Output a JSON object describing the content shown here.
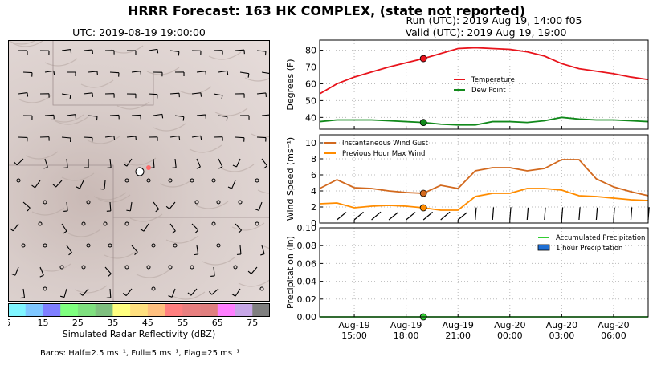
{
  "title": "HRRR Forecast: 163 HK COMPLEX, (state not reported)",
  "run_label": "Run (UTC): 2019 Aug 19, 14:00 f05",
  "valid_label": "Valid (UTC): 2019 Aug 19, 19:00",
  "map": {
    "time_label": "UTC: 2019-08-19 19:00:00",
    "colorbar_title": "Simulated Radar Reflectivity (dBZ)",
    "colorbar_ticks": [
      "5",
      "15",
      "25",
      "35",
      "45",
      "55",
      "65",
      "75"
    ],
    "colorbar_colors": [
      "#7ff5ff",
      "#7fc7ff",
      "#7f7fff",
      "#7fff7f",
      "#7fe07f",
      "#7fc07f",
      "#ffff7f",
      "#ffe07f",
      "#ffc07f",
      "#ff7f7f",
      "#e87f7f",
      "#e07f7f",
      "#ff7fff",
      "#c7a7e7",
      "#7f7f7f"
    ],
    "barb_note": "Barbs: Half=2.5 ms⁻¹, Full=5 ms⁻¹, Flag=25 ms⁻¹"
  },
  "chart_data": [
    {
      "type": "line",
      "ylabel": "Degrees (F)",
      "ylim": [
        33,
        86
      ],
      "yticks": [
        "40",
        "50",
        "60",
        "70",
        "80"
      ],
      "x": [
        "13:00",
        "14:00",
        "15:00",
        "16:00",
        "17:00",
        "18:00",
        "19:00",
        "20:00",
        "21:00",
        "22:00",
        "23:00",
        "00:00",
        "01:00",
        "02:00",
        "03:00",
        "04:00",
        "05:00",
        "06:00",
        "07:00",
        "08:00"
      ],
      "series": [
        {
          "name": "Temperature",
          "color": "#e8141c",
          "values": [
            54,
            60,
            64,
            67,
            70,
            72.5,
            75,
            78,
            81,
            81.5,
            81,
            80.5,
            79,
            76.5,
            72,
            69,
            67.5,
            66,
            64,
            62.5
          ]
        },
        {
          "name": "Dew Point",
          "color": "#11891b",
          "values": [
            37.5,
            38.5,
            38.5,
            38.5,
            38,
            37.5,
            37,
            36,
            35.5,
            35.5,
            37.5,
            37.5,
            37,
            38,
            40,
            39,
            38.5,
            38.5,
            38,
            37.5
          ]
        }
      ],
      "marker_index": 6,
      "legend_position": "center-right",
      "grid": true
    },
    {
      "type": "line",
      "ylabel": "Wind Speed (ms⁻¹)",
      "ylim": [
        0,
        11
      ],
      "yticks": [
        "0",
        "2",
        "4",
        "6",
        "8",
        "10"
      ],
      "series": [
        {
          "name": "Instantaneous Wind Gust",
          "color": "#d2691e",
          "values": [
            4.3,
            5.4,
            4.4,
            4.3,
            4.0,
            3.8,
            3.7,
            4.7,
            4.3,
            6.5,
            6.9,
            6.9,
            6.5,
            6.8,
            7.9,
            7.9,
            5.5,
            4.5,
            3.9,
            3.4
          ]
        },
        {
          "name": "Previous Hour Max Wind",
          "color": "#ff8c00",
          "values": [
            2.4,
            2.5,
            1.9,
            2.1,
            2.2,
            2.1,
            1.9,
            1.6,
            1.6,
            3.3,
            3.7,
            3.7,
            4.3,
            4.3,
            4.1,
            3.4,
            3.3,
            3.1,
            2.9,
            2.8
          ]
        }
      ],
      "marker_index": 6,
      "legend_position": "top-left",
      "grid": true
    },
    {
      "type": "line",
      "ylabel": "Precipitation (in)",
      "ylim": [
        0,
        0.1
      ],
      "yticks": [
        "0.00",
        "0.02",
        "0.04",
        "0.06",
        "0.08",
        "0.10"
      ],
      "series": [
        {
          "name": "Accumulated Precipitation",
          "color": "#32cd32",
          "values": [
            0,
            0,
            0,
            0,
            0,
            0,
            0,
            0,
            0,
            0,
            0,
            0,
            0,
            0,
            0,
            0,
            0,
            0,
            0,
            0
          ]
        },
        {
          "name": "1 hour Precipitation",
          "color": "#1f6fd4",
          "values": [
            0,
            0,
            0,
            0,
            0,
            0,
            0,
            0,
            0,
            0,
            0,
            0,
            0,
            0,
            0,
            0,
            0,
            0,
            0,
            0
          ]
        }
      ],
      "marker_index": 6,
      "legend_position": "top-right",
      "grid": true,
      "xtick_labels": [
        [
          "Aug-19",
          "15:00"
        ],
        [
          "Aug-19",
          "18:00"
        ],
        [
          "Aug-19",
          "21:00"
        ],
        [
          "Aug-20",
          "00:00"
        ],
        [
          "Aug-20",
          "03:00"
        ],
        [
          "Aug-20",
          "06:00"
        ]
      ]
    }
  ]
}
